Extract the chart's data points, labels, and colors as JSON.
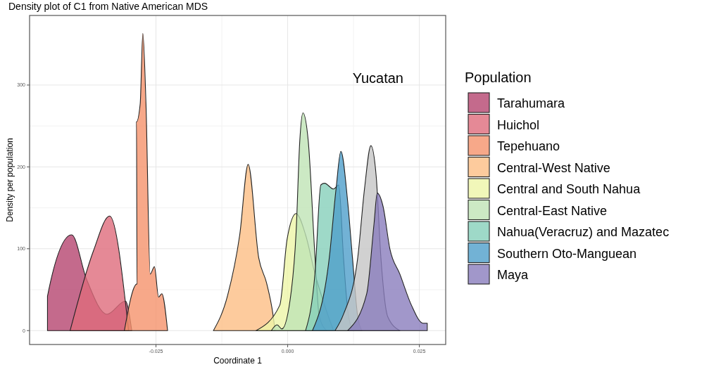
{
  "chart_data": {
    "type": "area",
    "title": "Density plot of C1 from Native American MDS",
    "xlabel": "Coordinate 1",
    "ylabel": "Density per population",
    "legend_title": "Population",
    "xlim": [
      -0.049,
      0.03
    ],
    "xticks": [
      -0.025,
      {
        "value": 0,
        "label": "0.000"
      },
      0.025
    ],
    "ylim": [
      -17,
      385
    ],
    "yticks": [
      0,
      100,
      200,
      300
    ],
    "grid": true,
    "legend": "right",
    "annotations": [
      "Yucatan"
    ],
    "series": [
      {
        "name": "Tarahumara",
        "color": "#b5456f",
        "x": [
          -0.0456,
          -0.0456,
          -0.041,
          -0.0382,
          -0.0343,
          -0.0308,
          -0.0296
        ],
        "values": [
          0,
          42,
          117,
          63,
          20,
          36,
          0
        ]
      },
      {
        "name": "Huichol",
        "color": "#df6c7c",
        "x": [
          -0.0413,
          -0.0369,
          -0.0338,
          -0.0302
        ],
        "values": [
          0,
          97,
          140,
          0
        ]
      },
      {
        "name": "Tepehuano",
        "color": "#f5926b",
        "x": [
          -0.031,
          -0.0286,
          -0.0287,
          -0.028,
          -0.0275,
          -0.0269,
          -0.0261,
          -0.0253,
          -0.0245,
          -0.0239,
          -0.0228
        ],
        "values": [
          0,
          57,
          255,
          277,
          363,
          277,
          69,
          78,
          41,
          45,
          0
        ]
      },
      {
        "name": "Central-West Native",
        "color": "#fdbe84",
        "x": [
          -0.0141,
          -0.0114,
          -0.0091,
          -0.0075,
          -0.0055,
          -0.004,
          -0.0028,
          -0.0024
        ],
        "values": [
          0,
          43,
          117,
          203,
          89,
          58,
          20,
          0
        ]
      },
      {
        "name": "Central and South Nahua",
        "color": "#eef5a8",
        "x": [
          -0.006,
          -0.0015,
          -0.0001,
          0.0016,
          0.0034,
          0.0052,
          0.007,
          0.0087
        ],
        "values": [
          0,
          31,
          112,
          143,
          117,
          69,
          31,
          0
        ]
      },
      {
        "name": "Central-East Native",
        "color": "#bfe3b5",
        "x": [
          -0.0031,
          -0.002,
          -0.0011,
          0.0007,
          0.0016,
          0.0023,
          0.0029,
          0.0039,
          0.0052,
          0.006,
          0.0074
        ],
        "values": [
          0,
          7,
          2,
          49,
          120,
          232,
          266,
          232,
          89,
          17,
          0
        ]
      },
      {
        "name": "Nahua(Veracruz) and Mazatec",
        "color": "#86cfba",
        "x": [
          0.0034,
          0.0052,
          0.0063,
          0.007,
          0.0087,
          0.0097,
          0.0106,
          0.0113,
          0.0123
        ],
        "values": [
          0,
          71,
          178,
          180,
          173,
          178,
          89,
          31,
          0
        ]
      },
      {
        "name": "Southern Oto-Manguean",
        "color": "#4f9fcb",
        "x": [
          0.0047,
          0.0079,
          0.0092,
          0.0101,
          0.0114,
          0.0123,
          0.0133,
          0.0141
        ],
        "values": [
          0,
          89,
          174,
          219,
          157,
          89,
          17,
          0
        ]
      },
      {
        "color": "#c6c6c6",
        "x": [
          0.009,
          0.0106,
          0.0133,
          0.0146,
          0.0158,
          0.0168,
          0.0177,
          0.019,
          0.0213
        ],
        "values": [
          0,
          20,
          89,
          174,
          226,
          189,
          89,
          17,
          0
        ]
      },
      {
        "name": "Maya",
        "color": "#8a7dbd",
        "x": [
          0.0114,
          0.015,
          0.0164,
          0.017,
          0.0181,
          0.0194,
          0.0213,
          0.0235,
          0.0257,
          0.0265,
          0.0265
        ],
        "values": [
          0,
          45,
          131,
          168,
          152,
          100,
          69,
          31,
          9,
          9,
          0
        ]
      }
    ]
  }
}
